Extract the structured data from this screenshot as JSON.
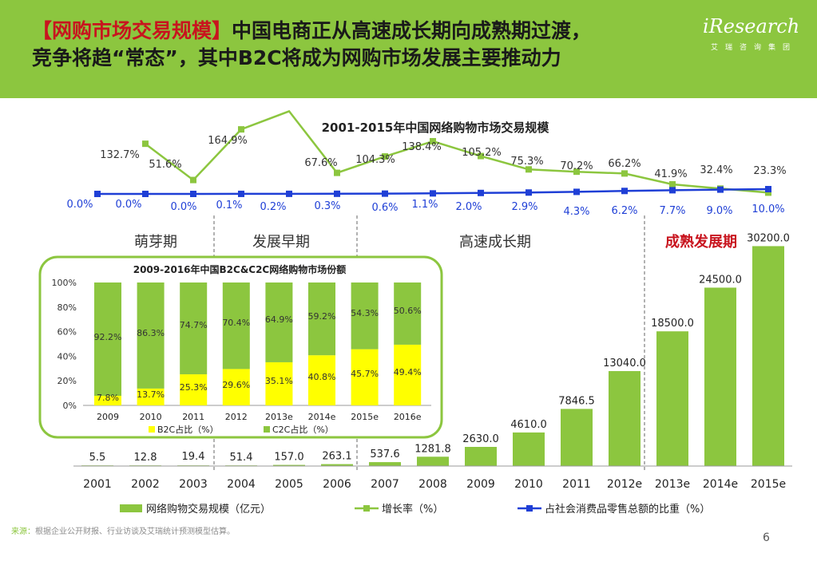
{
  "header": {
    "title_accent": "【网购市场交易规模】",
    "title_line1": "中国电商正从高速成长期向成熟期过渡，",
    "title_line2": "竞争将趋“常态”，其中B2C将成为网购市场发展主要推动力",
    "logo_main": "iResearch",
    "logo_sub": "艾瑞咨询集团"
  },
  "colors": {
    "green": "#8cc63f",
    "blue": "#1f3fd6",
    "yellow": "#ffff00",
    "red": "#c8141e"
  },
  "footer": {
    "source_label": "来源：",
    "source_text": "根据企业公开财报、行业访谈及艾瑞统计预测模型估算。",
    "page": "6"
  },
  "chart_data": [
    {
      "type": "bar",
      "title": "2001-2015年中国网络购物市场交易规模",
      "categories": [
        "2001",
        "2002",
        "2003",
        "2004",
        "2005",
        "2006",
        "2007",
        "2008",
        "2009",
        "2010",
        "2011",
        "2012e",
        "2013e",
        "2014e",
        "2015e"
      ],
      "series": [
        {
          "name": "网络购物交易规模（亿元）",
          "type": "bar",
          "values": [
            5.5,
            12.8,
            19.4,
            51.4,
            157.0,
            263.1,
            537.6,
            1281.8,
            2630.0,
            4610.0,
            7846.5,
            13040.0,
            18500.0,
            24500.0,
            30200.0
          ],
          "labels": [
            "5.5",
            "12.8",
            "19.4",
            "51.4",
            "157.0",
            "263.1",
            "537.6",
            "1281.8",
            "2630.0",
            "4610.0",
            "7846.5",
            "13040.0",
            "18500.0",
            "24500.0",
            "30200.0"
          ]
        },
        {
          "name": "增长率（%）",
          "type": "line",
          "values": [
            null,
            132.7,
            51.6,
            164.9,
            205.4,
            67.6,
            104.3,
            138.4,
            105.2,
            75.3,
            70.2,
            66.2,
            41.9,
            32.4,
            23.3
          ],
          "labels": [
            "",
            "132.7%",
            "51.6%",
            "164.9%",
            "",
            "67.6%",
            "104.3%",
            "138.4%",
            "105.2%",
            "75.3%",
            "70.2%",
            "66.2%",
            "41.9%",
            "32.4%",
            "23.3%"
          ]
        },
        {
          "name": "占社会消费品零售总额的比重（%）",
          "type": "line",
          "values": [
            0.0,
            0.0,
            0.0,
            0.1,
            0.2,
            0.3,
            0.6,
            1.1,
            2.0,
            2.9,
            4.3,
            6.2,
            7.7,
            9.0,
            10.0
          ],
          "labels": [
            "0.0%",
            "0.0%",
            "0.0%",
            "0.1%",
            "0.2%",
            "0.3%",
            "0.6%",
            "1.1%",
            "2.0%",
            "2.9%",
            "4.3%",
            "6.2%",
            "7.7%",
            "9.0%",
            "10.0%"
          ]
        }
      ],
      "phases": [
        {
          "label": "萌芽期",
          "highlight": false
        },
        {
          "label": "发展早期",
          "highlight": false
        },
        {
          "label": "高速成长期",
          "highlight": false
        },
        {
          "label": "成熟发展期",
          "highlight": true
        }
      ],
      "ylim": [
        0,
        32000
      ],
      "legend_position": "bottom"
    },
    {
      "type": "bar",
      "stacked": true,
      "title": "2009-2016年中国B2C&C2C网络购物市场份额",
      "categories": [
        "2009",
        "2010",
        "2011",
        "2012",
        "2013e",
        "2014e",
        "2015e",
        "2016e"
      ],
      "series": [
        {
          "name": "B2C占比（%）",
          "values": [
            7.8,
            13.7,
            25.3,
            29.6,
            35.1,
            40.8,
            45.7,
            49.4
          ],
          "labels": [
            "7.8%",
            "13.7%",
            "25.3%",
            "29.6%",
            "35.1%",
            "40.8%",
            "45.7%",
            "49.4%"
          ]
        },
        {
          "name": "C2C占比（%）",
          "values": [
            92.2,
            86.3,
            74.7,
            70.4,
            64.9,
            59.2,
            54.3,
            50.6
          ],
          "labels": [
            "92.2%",
            "86.3%",
            "74.7%",
            "70.4%",
            "64.9%",
            "59.2%",
            "54.3%",
            "50.6%"
          ]
        }
      ],
      "yticks": [
        "0%",
        "20%",
        "40%",
        "60%",
        "80%",
        "100%"
      ],
      "ylim": [
        0,
        100
      ],
      "legend_position": "bottom"
    }
  ]
}
